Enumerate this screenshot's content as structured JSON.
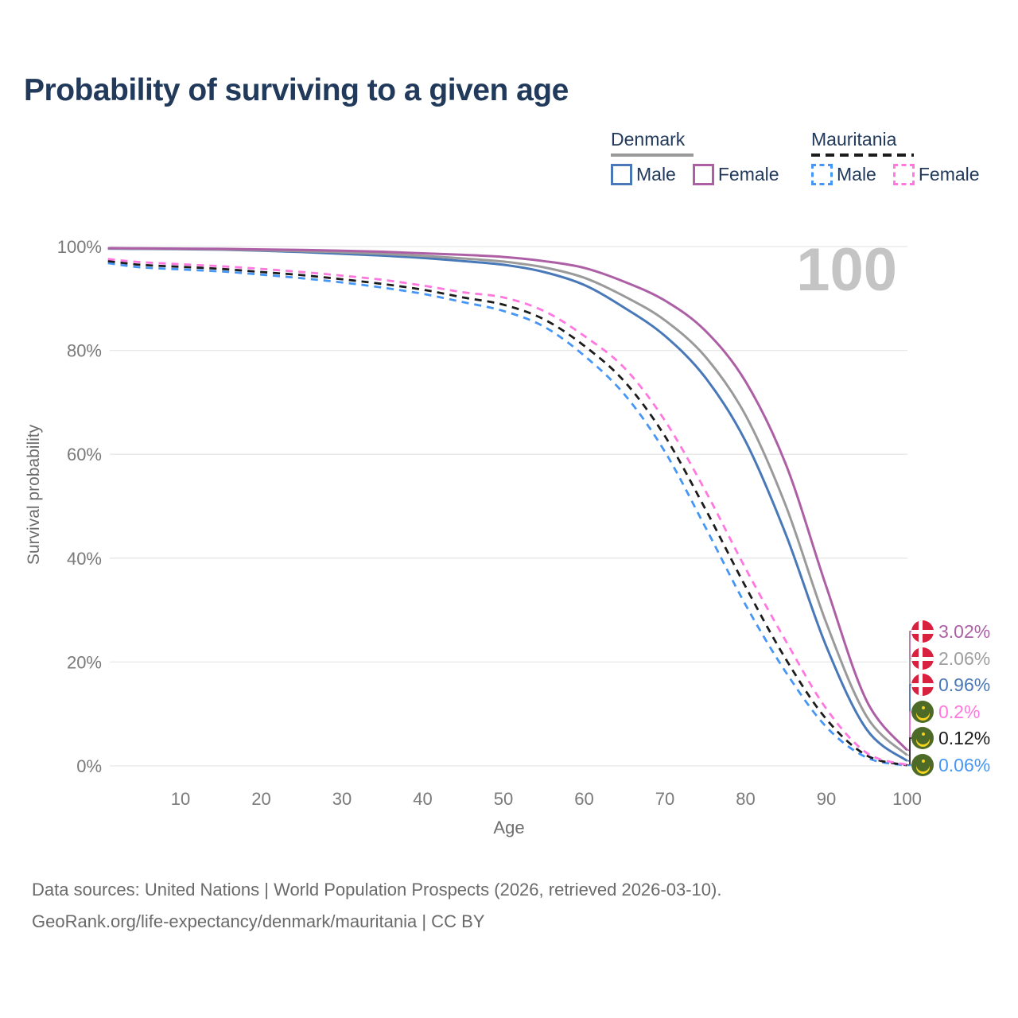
{
  "title": "Probability of surviving to a given age",
  "watermark": "100",
  "colors": {
    "title": "#21395a",
    "axis_text": "#6d6d6d",
    "tick_text": "#7a7a7a",
    "gridline": "#e7e7e7",
    "watermark": "#c4c4c4",
    "denmark_male": "#4878b8",
    "denmark_female": "#ad5fa5",
    "denmark_both": "#9a9a9a",
    "mauritania_male": "#4596f7",
    "mauritania_female": "#ff77df",
    "mauritania_both": "#1c1c1c",
    "flag_denmark_red": "#d8203f",
    "flag_mauritania_green": "#4d6a28",
    "flag_mauritania_yellow": "#f5d31f"
  },
  "legend": {
    "groups": [
      {
        "label": "Denmark",
        "line_style": "solid",
        "rule_color": "#9a9a9a",
        "items": [
          {
            "label": "Male",
            "color": "#4878b8"
          },
          {
            "label": "Female",
            "color": "#ad5fa5"
          }
        ]
      },
      {
        "label": "Mauritania",
        "line_style": "dashed",
        "rule_color": "#1c1c1c",
        "items": [
          {
            "label": "Male",
            "color": "#4596f7"
          },
          {
            "label": "Female",
            "color": "#ff77df"
          }
        ]
      }
    ]
  },
  "chart_data": {
    "type": "line",
    "title": "Probability of surviving to a given age",
    "xlabel": "Age",
    "ylabel": "Survival probability",
    "xlim": [
      1,
      100
    ],
    "ylim": [
      0,
      100
    ],
    "x_ticks": [
      10,
      20,
      30,
      40,
      50,
      60,
      70,
      80,
      90,
      100
    ],
    "y_tick_values": [
      0,
      20,
      40,
      60,
      80,
      100
    ],
    "y_tick_labels": [
      "0%",
      "20%",
      "40%",
      "60%",
      "80%",
      "100%"
    ],
    "grid": "horizontal",
    "legend_position": "top-right",
    "x": [
      1,
      5,
      10,
      15,
      20,
      25,
      30,
      35,
      40,
      45,
      50,
      55,
      60,
      65,
      70,
      75,
      80,
      85,
      90,
      95,
      100
    ],
    "series": [
      {
        "name": "Mauritania Male",
        "country": "Mauritania",
        "sex": "Male",
        "color": "#4596f7",
        "dash": true,
        "end_label": "0.06%",
        "values": [
          96.8,
          96.0,
          95.6,
          95.2,
          94.6,
          93.9,
          93.1,
          92.1,
          90.9,
          89.3,
          87.6,
          84.6,
          79.0,
          71.5,
          60.5,
          46.0,
          31.0,
          18.0,
          7.5,
          1.6,
          0.06
        ]
      },
      {
        "name": "Mauritania Both sexes",
        "country": "Mauritania",
        "sex": "Both",
        "color": "#1c1c1c",
        "dash": true,
        "end_label": "0.12%",
        "values": [
          97.2,
          96.5,
          96.1,
          95.7,
          95.1,
          94.5,
          93.7,
          92.8,
          91.7,
          90.2,
          88.8,
          86.0,
          80.9,
          74.0,
          63.5,
          49.5,
          34.5,
          20.5,
          9.0,
          2.0,
          0.12
        ]
      },
      {
        "name": "Mauritania Female",
        "country": "Mauritania",
        "sex": "Female",
        "color": "#ff77df",
        "dash": true,
        "end_label": "0.2%",
        "values": [
          97.6,
          97.0,
          96.6,
          96.2,
          95.7,
          95.1,
          94.4,
          93.6,
          92.5,
          91.2,
          90.2,
          87.6,
          82.8,
          76.6,
          66.5,
          53.0,
          38.0,
          24.0,
          11.0,
          2.5,
          0.2
        ]
      },
      {
        "name": "Denmark Male",
        "country": "Denmark",
        "sex": "Male",
        "color": "#4878b8",
        "dash": false,
        "end_label": "0.96%",
        "values": [
          99.6,
          99.55,
          99.5,
          99.4,
          99.2,
          98.95,
          98.6,
          98.25,
          97.8,
          97.2,
          96.5,
          95.1,
          92.6,
          88.2,
          82.8,
          74.8,
          62.5,
          44.5,
          23.0,
          7.0,
          0.96
        ]
      },
      {
        "name": "Denmark Both sexes",
        "country": "Denmark",
        "sex": "Both",
        "color": "#9a9a9a",
        "dash": false,
        "end_label": "2.06%",
        "values": [
          99.65,
          99.6,
          99.55,
          99.45,
          99.3,
          99.1,
          98.9,
          98.6,
          98.2,
          97.7,
          97.1,
          96.0,
          94.0,
          90.4,
          85.8,
          78.8,
          67.5,
          50.0,
          27.5,
          9.5,
          2.06
        ]
      },
      {
        "name": "Denmark Female",
        "country": "Denmark",
        "sex": "Female",
        "color": "#ad5fa5",
        "dash": false,
        "end_label": "3.02%",
        "values": [
          99.7,
          99.65,
          99.6,
          99.55,
          99.45,
          99.35,
          99.2,
          99.0,
          98.7,
          98.4,
          98.0,
          97.2,
          95.9,
          93.2,
          89.6,
          83.8,
          74.0,
          58.0,
          34.5,
          12.5,
          3.02
        ]
      }
    ]
  },
  "end_labels": [
    {
      "flag": "denmark",
      "text": "3.02%",
      "color": "#ad5fa5",
      "series": "Denmark Female"
    },
    {
      "flag": "denmark",
      "text": "2.06%",
      "color": "#9e9e9e",
      "series": "Denmark Both sexes"
    },
    {
      "flag": "denmark",
      "text": "0.96%",
      "color": "#4878b8",
      "series": "Denmark Male"
    },
    {
      "flag": "mauritania",
      "text": "0.2%",
      "color": "#ff77df",
      "series": "Mauritania Female"
    },
    {
      "flag": "mauritania",
      "text": "0.12%",
      "color": "#1c1c1c",
      "series": "Mauritania Both sexes"
    },
    {
      "flag": "mauritania",
      "text": "0.06%",
      "color": "#4596f7",
      "series": "Mauritania Male"
    }
  ],
  "footer": {
    "line1": "Data sources: United Nations | World Population Prospects (2026, retrieved 2026-03-10).",
    "line2": "GeoRank.org/life-expectancy/denmark/mauritania | CC BY"
  }
}
